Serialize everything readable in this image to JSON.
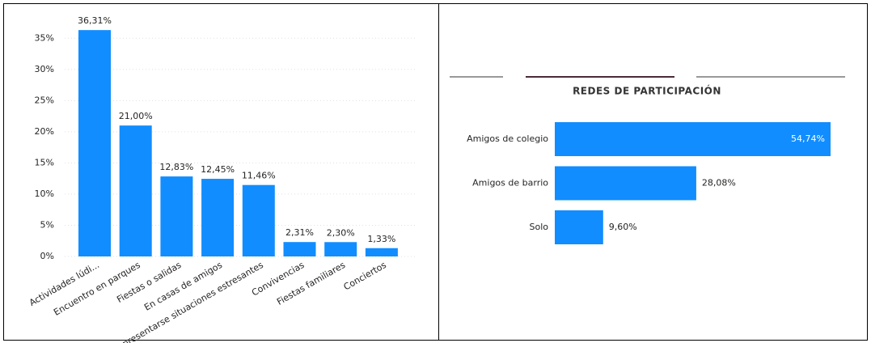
{
  "chart_data": [
    {
      "type": "bar",
      "categories": [
        "Actividades lúdi...",
        "Encuentro en parques",
        "Fiestas o salidas",
        "En casas de amigos",
        "Al presentarse situaciones estresantes",
        "Convivencias",
        "Fiestas familiares",
        "Conciertos"
      ],
      "values": [
        36.31,
        21.0,
        12.83,
        12.45,
        11.46,
        2.31,
        2.3,
        1.33
      ],
      "value_labels": [
        "36,31%",
        "21,00%",
        "12,83%",
        "12,45%",
        "11,46%",
        "2,31%",
        "2,30%",
        "1,33%"
      ],
      "color": "#118dff",
      "ylim": [
        0,
        37.5
      ],
      "yticks": [
        {
          "value": 0,
          "label": "0%"
        },
        {
          "value": 5,
          "label": "5%"
        },
        {
          "value": 10,
          "label": "10%"
        },
        {
          "value": 15,
          "label": "15%"
        },
        {
          "value": 20,
          "label": "20%"
        },
        {
          "value": 25,
          "label": "25%"
        },
        {
          "value": 30,
          "label": "30%"
        },
        {
          "value": 35,
          "label": "35%"
        }
      ],
      "grid": true
    },
    {
      "type": "hbar",
      "title": "REDES DE PARTICIPACIÓN",
      "categories": [
        "Amigos de colegio",
        "Amigos de barrio",
        "Solo"
      ],
      "values": [
        54.74,
        28.08,
        9.6
      ],
      "value_labels": [
        "54,74%",
        "28,08%",
        "9,60%"
      ],
      "color": "#118dff"
    }
  ]
}
